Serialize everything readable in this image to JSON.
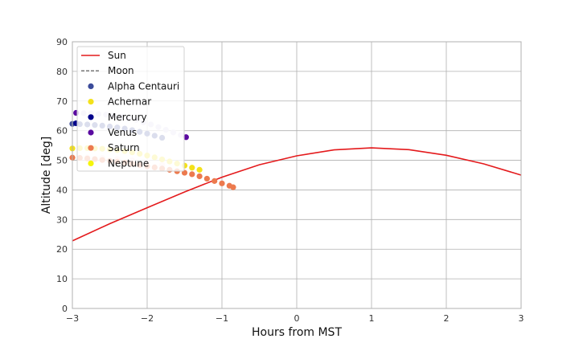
{
  "chart_data": {
    "type": "scatter",
    "xlabel": "Hours from MST",
    "ylabel": "Altitude [deg]",
    "xlim": [
      -3,
      3
    ],
    "ylim": [
      0,
      90
    ],
    "xticks": [
      -3,
      -2,
      -1,
      0,
      1,
      2,
      3
    ],
    "yticks": [
      0,
      10,
      20,
      30,
      40,
      50,
      60,
      70,
      80,
      90
    ],
    "xtick_labels": [
      "−3",
      "−2",
      "−1",
      "0",
      "1",
      "2",
      "3"
    ],
    "ytick_labels": [
      "0",
      "10",
      "20",
      "30",
      "40",
      "50",
      "60",
      "70",
      "80",
      "90"
    ],
    "grid": true,
    "legend_position": "top-left",
    "series": [
      {
        "name": "Sun",
        "kind": "line",
        "color": "#e41a1c",
        "x": [
          -3.0,
          -2.5,
          -2.0,
          -1.5,
          -1.0,
          -0.5,
          0.0,
          0.5,
          1.0,
          1.5,
          2.0,
          2.5,
          3.0
        ],
        "y": [
          22.8,
          28.6,
          34.0,
          39.3,
          44.3,
          48.5,
          51.5,
          53.5,
          54.2,
          53.6,
          51.7,
          48.8,
          45.0
        ]
      },
      {
        "name": "Moon",
        "kind": "dashed-line",
        "color": "#808080",
        "x": [],
        "y": []
      },
      {
        "name": "Alpha Centauri",
        "kind": "scatter",
        "color": "#3b4b9a",
        "x": [
          -3.0,
          -2.9,
          -2.8,
          -2.7,
          -2.6,
          -2.5,
          -2.4,
          -2.3,
          -2.2,
          -2.1,
          -2.0,
          -1.9,
          -1.8
        ],
        "y": [
          62.3,
          62.2,
          62.1,
          61.9,
          61.7,
          61.4,
          61.1,
          60.7,
          60.2,
          59.6,
          59.0,
          58.3,
          57.6
        ]
      },
      {
        "name": "Achernar",
        "kind": "scatter",
        "color": "#f3e11a",
        "x": [
          -3.0,
          -2.9,
          -2.8,
          -2.7,
          -2.6,
          -2.5,
          -2.4,
          -2.3,
          -2.2,
          -2.1,
          -2.0,
          -1.9,
          -1.8,
          -1.7,
          -1.6,
          -1.5,
          -1.4,
          -1.3
        ],
        "y": [
          54.0,
          54.1,
          54.1,
          54.0,
          53.9,
          53.7,
          53.4,
          53.1,
          52.7,
          52.2,
          51.6,
          51.0,
          50.3,
          49.6,
          48.9,
          48.2,
          47.5,
          46.8
        ]
      },
      {
        "name": "Mercury",
        "kind": "scatter",
        "color": "#00008b",
        "x": [
          -2.95
        ],
        "y": [
          62.5
        ]
      },
      {
        "name": "Venus",
        "kind": "scatter",
        "color": "#5a0aa0",
        "x": [
          -2.95,
          -1.48
        ],
        "y": [
          66.0,
          57.8
        ]
      },
      {
        "name": "Saturn",
        "kind": "scatter",
        "color": "#ec7a4e",
        "x": [
          -3.0,
          -2.9,
          -2.8,
          -2.7,
          -2.6,
          -2.5,
          -2.4,
          -2.3,
          -2.2,
          -2.1,
          -2.0,
          -1.9,
          -1.8,
          -1.7,
          -1.6,
          -1.5,
          -1.4,
          -1.3,
          -1.2,
          -1.1,
          -1.0,
          -0.9,
          -0.85
        ],
        "y": [
          50.9,
          50.8,
          50.6,
          50.4,
          50.1,
          49.8,
          49.5,
          49.2,
          48.8,
          48.4,
          48.0,
          47.6,
          47.2,
          46.8,
          46.3,
          45.8,
          45.3,
          44.6,
          43.8,
          43.0,
          42.2,
          41.4,
          40.9
        ]
      },
      {
        "name": "Neptune",
        "kind": "scatter",
        "color": "#f5f50a",
        "x": [],
        "y": []
      }
    ],
    "faded_tracks": [
      {
        "color": "#d8d0ec",
        "x": [
          -2.85,
          -2.75,
          -2.65,
          -2.55,
          -2.45,
          -2.35,
          -2.25,
          -2.15,
          -2.05,
          -1.95,
          -1.85,
          -1.75,
          -1.65,
          -1.55
        ],
        "y": [
          65.9,
          65.8,
          65.6,
          65.4,
          65.1,
          64.7,
          64.2,
          63.6,
          62.8,
          62.1,
          61.2,
          60.3,
          59.4,
          58.5
        ]
      },
      {
        "color": "#fbe3e3",
        "x": [
          -2.8,
          -2.6,
          -2.4,
          -2.2,
          -2.0,
          -1.8
        ],
        "y": [
          51.0,
          50.8,
          50.5,
          50.0,
          49.3,
          48.5
        ]
      }
    ]
  }
}
